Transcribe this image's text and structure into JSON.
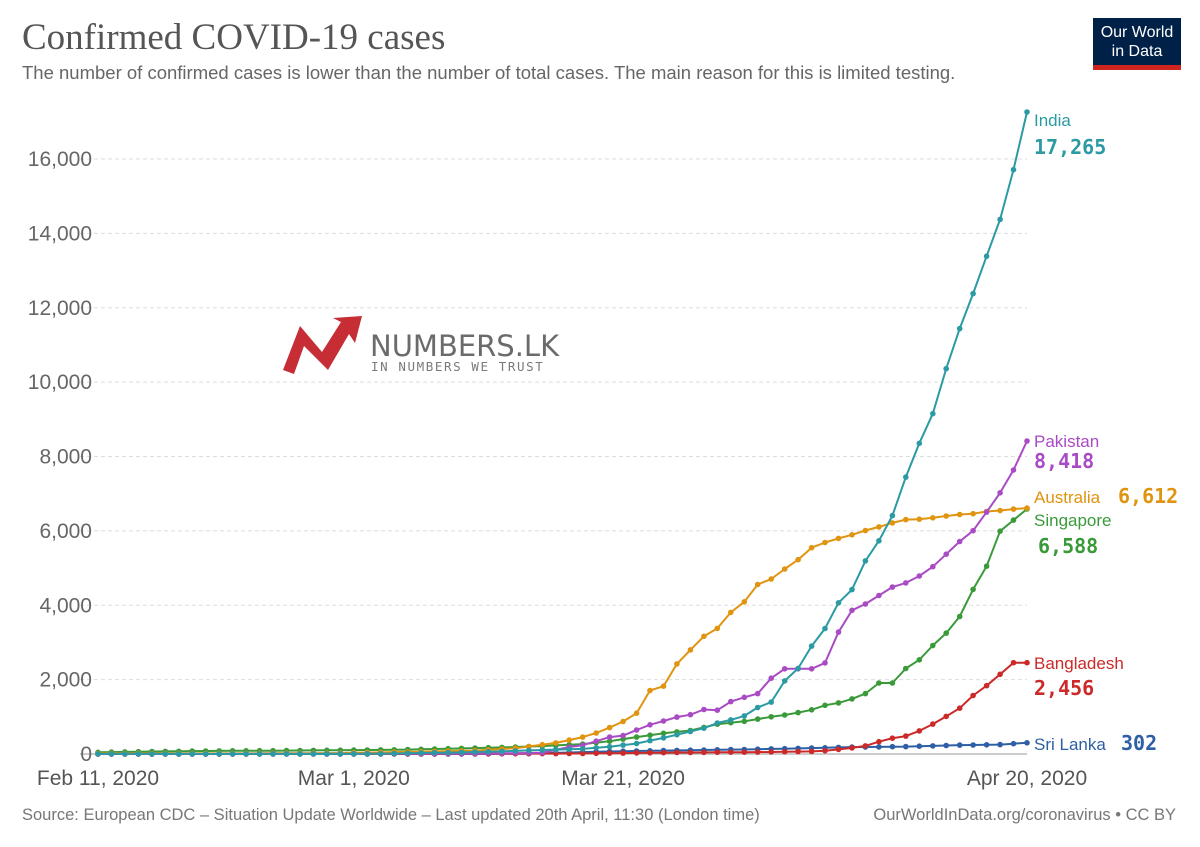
{
  "header": {
    "title": "Confirmed COVID-19 cases",
    "subtitle": "The number of confirmed cases is lower than the number of total cases. The main reason for this is limited testing."
  },
  "logo": {
    "line1": "Our World",
    "line2": "in Data"
  },
  "watermark": {
    "name": "NUMBERS.LK",
    "tagline": "IN NUMBERS WE TRUST"
  },
  "footer": {
    "source": "Source: European CDC – Situation Update Worldwide – Last updated 20th April, 11:30 (London time)",
    "link": "OurWorldInData.org/coronavirus • CC BY"
  },
  "chart_data": {
    "type": "line",
    "x_start": "2020-02-11",
    "x_end": "2020-04-20",
    "xlim": [
      "2020-02-11",
      "2020-04-20"
    ],
    "ylim": [
      0,
      17265
    ],
    "y_ticks": [
      0,
      2000,
      4000,
      6000,
      8000,
      10000,
      12000,
      14000,
      16000
    ],
    "y_tick_labels": [
      "0",
      "2,000",
      "4,000",
      "6,000",
      "8,000",
      "10,000",
      "12,000",
      "14,000",
      "16,000"
    ],
    "x_tick_labels": [
      {
        "date": "2020-02-11",
        "label": "Feb 11, 2020"
      },
      {
        "date": "2020-03-01",
        "label": "Mar 1, 2020"
      },
      {
        "date": "2020-03-21",
        "label": "Mar 21, 2020"
      },
      {
        "date": "2020-04-20",
        "label": "Apr 20, 2020"
      }
    ],
    "grid": true,
    "legend": "end-of-line labels",
    "series": [
      {
        "name": "India",
        "value_label": "17,265",
        "color": "#2b9aa3",
        "values": [
          [
            "2020-02-11",
            3
          ],
          [
            "2020-02-14",
            3
          ],
          [
            "2020-02-17",
            3
          ],
          [
            "2020-02-20",
            3
          ],
          [
            "2020-02-23",
            3
          ],
          [
            "2020-02-26",
            3
          ],
          [
            "2020-02-29",
            3
          ],
          [
            "2020-03-03",
            5
          ],
          [
            "2020-03-06",
            30
          ],
          [
            "2020-03-09",
            43
          ],
          [
            "2020-03-12",
            73
          ],
          [
            "2020-03-15",
            107
          ],
          [
            "2020-03-18",
            137
          ],
          [
            "2020-03-20",
            195
          ],
          [
            "2020-03-22",
            283
          ],
          [
            "2020-03-23",
            360
          ],
          [
            "2020-03-24",
            434
          ],
          [
            "2020-03-25",
            519
          ],
          [
            "2020-03-26",
            606
          ],
          [
            "2020-03-27",
            694
          ],
          [
            "2020-03-28",
            834
          ],
          [
            "2020-03-29",
            918
          ],
          [
            "2020-03-30",
            1024
          ],
          [
            "2020-03-31",
            1251
          ],
          [
            "2020-04-01",
            1397
          ],
          [
            "2020-04-02",
            1965
          ],
          [
            "2020-04-03",
            2301
          ],
          [
            "2020-04-04",
            2902
          ],
          [
            "2020-04-05",
            3374
          ],
          [
            "2020-04-06",
            4067
          ],
          [
            "2020-04-07",
            4421
          ],
          [
            "2020-04-08",
            5194
          ],
          [
            "2020-04-09",
            5734
          ],
          [
            "2020-04-10",
            6412
          ],
          [
            "2020-04-11",
            7447
          ],
          [
            "2020-04-12",
            8356
          ],
          [
            "2020-04-13",
            9152
          ],
          [
            "2020-04-14",
            10363
          ],
          [
            "2020-04-15",
            11439
          ],
          [
            "2020-04-16",
            12380
          ],
          [
            "2020-04-17",
            13387
          ],
          [
            "2020-04-18",
            14378
          ],
          [
            "2020-04-19",
            15712
          ],
          [
            "2020-04-20",
            17265
          ]
        ]
      },
      {
        "name": "Pakistan",
        "value_label": "8,418",
        "color": "#a94bc4",
        "values": [
          [
            "2020-02-11",
            0
          ],
          [
            "2020-02-26",
            2
          ],
          [
            "2020-03-03",
            5
          ],
          [
            "2020-03-09",
            6
          ],
          [
            "2020-03-12",
            20
          ],
          [
            "2020-03-15",
            31
          ],
          [
            "2020-03-17",
            187
          ],
          [
            "2020-03-18",
            237
          ],
          [
            "2020-03-20",
            454
          ],
          [
            "2020-03-21",
            495
          ],
          [
            "2020-03-22",
            645
          ],
          [
            "2020-03-23",
            784
          ],
          [
            "2020-03-24",
            887
          ],
          [
            "2020-03-25",
            991
          ],
          [
            "2020-03-26",
            1057
          ],
          [
            "2020-03-27",
            1197
          ],
          [
            "2020-03-28",
            1179
          ],
          [
            "2020-03-29",
            1408
          ],
          [
            "2020-03-30",
            1526
          ],
          [
            "2020-03-31",
            1625
          ],
          [
            "2020-04-01",
            2039
          ],
          [
            "2020-04-02",
            2291
          ],
          [
            "2020-04-03",
            2291
          ],
          [
            "2020-04-04",
            2291
          ],
          [
            "2020-04-05",
            2450
          ],
          [
            "2020-04-06",
            3277
          ],
          [
            "2020-04-07",
            3864
          ],
          [
            "2020-04-08",
            4035
          ],
          [
            "2020-04-09",
            4263
          ],
          [
            "2020-04-10",
            4489
          ],
          [
            "2020-04-11",
            4601
          ],
          [
            "2020-04-12",
            4788
          ],
          [
            "2020-04-13",
            5038
          ],
          [
            "2020-04-14",
            5374
          ],
          [
            "2020-04-15",
            5716
          ],
          [
            "2020-04-16",
            6005
          ],
          [
            "2020-04-17",
            6505
          ],
          [
            "2020-04-18",
            7025
          ],
          [
            "2020-04-19",
            7638
          ],
          [
            "2020-04-20",
            8418
          ]
        ]
      },
      {
        "name": "Australia",
        "value_label": "6,612",
        "color": "#e0940f",
        "values": [
          [
            "2020-02-11",
            15
          ],
          [
            "2020-02-20",
            15
          ],
          [
            "2020-02-29",
            25
          ],
          [
            "2020-03-06",
            63
          ],
          [
            "2020-03-10",
            92
          ],
          [
            "2020-03-13",
            156
          ],
          [
            "2020-03-15",
            249
          ],
          [
            "2020-03-16",
            298
          ],
          [
            "2020-03-17",
            375
          ],
          [
            "2020-03-18",
            454
          ],
          [
            "2020-03-19",
            565
          ],
          [
            "2020-03-20",
            709
          ],
          [
            "2020-03-21",
            874
          ],
          [
            "2020-03-22",
            1098
          ],
          [
            "2020-03-23",
            1709
          ],
          [
            "2020-03-24",
            1823
          ],
          [
            "2020-03-25",
            2423
          ],
          [
            "2020-03-26",
            2799
          ],
          [
            "2020-03-27",
            3166
          ],
          [
            "2020-03-28",
            3378
          ],
          [
            "2020-03-29",
            3809
          ],
          [
            "2020-03-30",
            4093
          ],
          [
            "2020-03-31",
            4557
          ],
          [
            "2020-04-01",
            4707
          ],
          [
            "2020-04-02",
            4976
          ],
          [
            "2020-04-03",
            5224
          ],
          [
            "2020-04-04",
            5548
          ],
          [
            "2020-04-05",
            5687
          ],
          [
            "2020-04-06",
            5797
          ],
          [
            "2020-04-07",
            5895
          ],
          [
            "2020-04-08",
            6010
          ],
          [
            "2020-04-09",
            6108
          ],
          [
            "2020-04-10",
            6215
          ],
          [
            "2020-04-11",
            6303
          ],
          [
            "2020-04-12",
            6315
          ],
          [
            "2020-04-13",
            6351
          ],
          [
            "2020-04-14",
            6400
          ],
          [
            "2020-04-15",
            6440
          ],
          [
            "2020-04-16",
            6462
          ],
          [
            "2020-04-17",
            6522
          ],
          [
            "2020-04-18",
            6547
          ],
          [
            "2020-04-19",
            6585
          ],
          [
            "2020-04-20",
            6612
          ]
        ]
      },
      {
        "name": "Singapore",
        "value_label": "6,588",
        "color": "#3a9a3a",
        "values": [
          [
            "2020-02-11",
            45
          ],
          [
            "2020-02-15",
            67
          ],
          [
            "2020-02-20",
            84
          ],
          [
            "2020-02-25",
            91
          ],
          [
            "2020-03-01",
            106
          ],
          [
            "2020-03-05",
            117
          ],
          [
            "2020-03-09",
            150
          ],
          [
            "2020-03-12",
            178
          ],
          [
            "2020-03-15",
            212
          ],
          [
            "2020-03-18",
            266
          ],
          [
            "2020-03-20",
            345
          ],
          [
            "2020-03-22",
            455
          ],
          [
            "2020-03-24",
            558
          ],
          [
            "2020-03-26",
            631
          ],
          [
            "2020-03-28",
            802
          ],
          [
            "2020-03-30",
            879
          ],
          [
            "2020-04-01",
            1000
          ],
          [
            "2020-04-02",
            1049
          ],
          [
            "2020-04-03",
            1114
          ],
          [
            "2020-04-04",
            1189
          ],
          [
            "2020-04-05",
            1309
          ],
          [
            "2020-04-06",
            1375
          ],
          [
            "2020-04-07",
            1481
          ],
          [
            "2020-04-08",
            1623
          ],
          [
            "2020-04-09",
            1910
          ],
          [
            "2020-04-10",
            1910
          ],
          [
            "2020-04-11",
            2299
          ],
          [
            "2020-04-12",
            2532
          ],
          [
            "2020-04-13",
            2918
          ],
          [
            "2020-04-14",
            3252
          ],
          [
            "2020-04-15",
            3699
          ],
          [
            "2020-04-16",
            4427
          ],
          [
            "2020-04-17",
            5050
          ],
          [
            "2020-04-18",
            5992
          ],
          [
            "2020-04-20",
            6588
          ]
        ]
      },
      {
        "name": "Bangladesh",
        "value_label": "2,456",
        "color": "#cc2929",
        "values": [
          [
            "2020-02-11",
            0
          ],
          [
            "2020-03-08",
            3
          ],
          [
            "2020-03-18",
            14
          ],
          [
            "2020-03-25",
            39
          ],
          [
            "2020-04-01",
            54
          ],
          [
            "2020-04-04",
            70
          ],
          [
            "2020-04-05",
            88
          ],
          [
            "2020-04-06",
            123
          ],
          [
            "2020-04-07",
            164
          ],
          [
            "2020-04-08",
            218
          ],
          [
            "2020-04-09",
            330
          ],
          [
            "2020-04-10",
            424
          ],
          [
            "2020-04-11",
            482
          ],
          [
            "2020-04-12",
            621
          ],
          [
            "2020-04-13",
            803
          ],
          [
            "2020-04-14",
            1012
          ],
          [
            "2020-04-15",
            1231
          ],
          [
            "2020-04-16",
            1572
          ],
          [
            "2020-04-17",
            1838
          ],
          [
            "2020-04-18",
            2144
          ],
          [
            "2020-04-19",
            2456
          ],
          [
            "2020-04-20",
            2456
          ]
        ]
      },
      {
        "name": "Sri Lanka",
        "value_label": "302",
        "color": "#2e5fa5",
        "values": [
          [
            "2020-02-11",
            1
          ],
          [
            "2020-03-10",
            1
          ],
          [
            "2020-03-14",
            10
          ],
          [
            "2020-03-18",
            51
          ],
          [
            "2020-03-22",
            82
          ],
          [
            "2020-03-26",
            102
          ],
          [
            "2020-03-30",
            122
          ],
          [
            "2020-04-03",
            151
          ],
          [
            "2020-04-07",
            185
          ],
          [
            "2020-04-11",
            199
          ],
          [
            "2020-04-15",
            238
          ],
          [
            "2020-04-18",
            254
          ],
          [
            "2020-04-20",
            302
          ]
        ]
      }
    ]
  }
}
